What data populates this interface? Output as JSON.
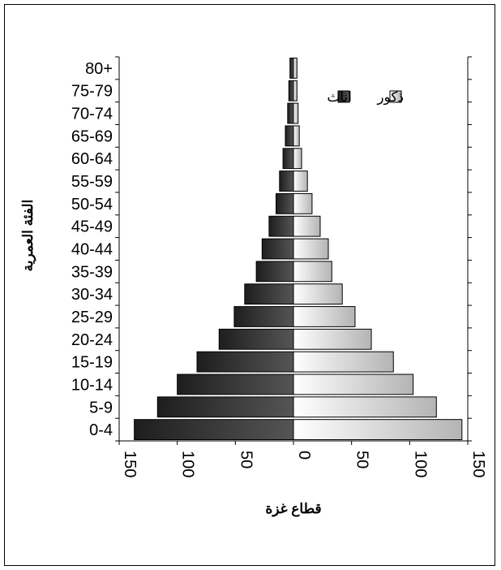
{
  "chart_data": {
    "type": "bar",
    "orientation": "horizontal-population-pyramid",
    "categories": [
      "0-4",
      "5-9",
      "10-14",
      "15-19",
      "20-24",
      "25-29",
      "30-34",
      "35-39",
      "40-44",
      "45-49",
      "50-54",
      "55-59",
      "60-64",
      "65-69",
      "70-74",
      "75-79",
      "80+"
    ],
    "series": [
      {
        "name": "اناث",
        "color": "#3a3a3a",
        "side": "left",
        "values": [
          137,
          117,
          100,
          83,
          64,
          51,
          42,
          32,
          27,
          21,
          15,
          12,
          9,
          7,
          5,
          4,
          3
        ]
      },
      {
        "name": "ذكور",
        "color": "#e6e6e6",
        "side": "right",
        "values": [
          145,
          123,
          103,
          86,
          67,
          53,
          42,
          33,
          30,
          23,
          16,
          12,
          7,
          5,
          4,
          3,
          3
        ]
      }
    ],
    "xlabel": "قطاع غزة",
    "ylabel": "الفئة العمرية",
    "xlim": [
      -150,
      150
    ],
    "xticks": [
      -150,
      -100,
      -50,
      0,
      50,
      100,
      150
    ],
    "xtick_labels": [
      "150",
      "100",
      "50",
      "0",
      "50",
      "100",
      "150"
    ],
    "grid": false,
    "legend_position": "top-right"
  }
}
